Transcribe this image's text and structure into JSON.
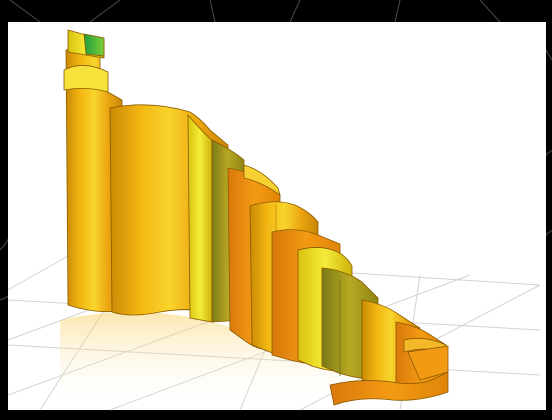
{
  "scene": {
    "background": "#000000",
    "panel_color": "#ffffff",
    "floor_grid_color": "#d6d6d6",
    "outer_line_color": "#5a5a5a",
    "ribbon_colors": {
      "base": "#f2b10f",
      "light": "#f7dd35",
      "dark": "#b97c06",
      "outline": "#8a5a00",
      "accent": "#1f9d3a",
      "orange": "#f0920f",
      "olive": "#9c8f1a"
    },
    "panels": [
      {
        "label": "tall-left-panel"
      },
      {
        "label": "wide-center-panel"
      },
      {
        "label": "step-panel-1"
      },
      {
        "label": "step-panel-2"
      },
      {
        "label": "step-panel-3"
      },
      {
        "label": "step-panel-4"
      },
      {
        "label": "step-panel-5"
      },
      {
        "label": "step-panel-6"
      },
      {
        "label": "step-panel-7"
      },
      {
        "label": "front-low-panel"
      }
    ]
  }
}
